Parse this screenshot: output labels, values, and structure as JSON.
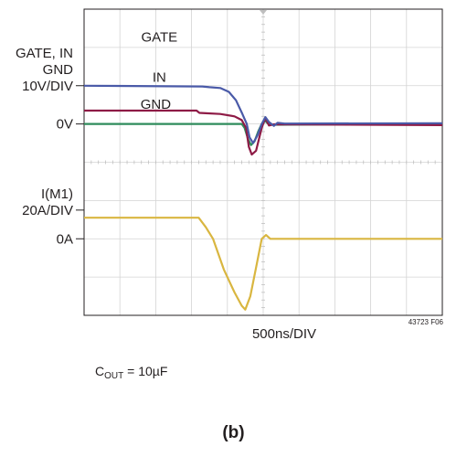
{
  "chart_data": {
    "type": "line",
    "title": "",
    "xlabel": "500ns/DIV",
    "figure_id": "43723 F06",
    "grid": true,
    "divisions": {
      "x": 10,
      "y": 8
    },
    "time_per_div_ns": 500,
    "xlim_ns": [
      0,
      5000
    ],
    "y_axis_labels": [
      {
        "lines": [
          "GATE, IN",
          "GND",
          "10V/DIV"
        ],
        "div": 6.0
      },
      {
        "lines": [
          "0V"
        ],
        "div": 5.0
      },
      {
        "lines": [
          "I(M1)",
          "20A/DIV"
        ],
        "div": 2.75
      },
      {
        "lines": [
          "0A"
        ],
        "div": 2.0
      }
    ],
    "series": [
      {
        "name": "GATE",
        "color": "#4a5aa8",
        "ref_div": 5.0,
        "units_per_div": 10,
        "unit": "V",
        "points": [
          [
            0,
            10
          ],
          [
            1650,
            9.8
          ],
          [
            1750,
            9.6
          ],
          [
            1900,
            9.4
          ],
          [
            2020,
            8.4
          ],
          [
            2120,
            6.2
          ],
          [
            2200,
            3.0
          ],
          [
            2270,
            0
          ],
          [
            2310,
            -3.5
          ],
          [
            2360,
            -5.0
          ],
          [
            2420,
            -3.0
          ],
          [
            2480,
            0
          ],
          [
            2530,
            1.8
          ],
          [
            2580,
            0.5
          ],
          [
            2650,
            -0.5
          ],
          [
            2700,
            0.3
          ],
          [
            2800,
            0.1
          ],
          [
            5000,
            0.2
          ]
        ]
      },
      {
        "name": "IN",
        "color": "#8e1b46",
        "ref_div": 5.0,
        "units_per_div": 10,
        "unit": "V",
        "points": [
          [
            0,
            3.5
          ],
          [
            1570,
            3.5
          ],
          [
            1610,
            2.9
          ],
          [
            1700,
            2.8
          ],
          [
            1900,
            2.6
          ],
          [
            2100,
            2.0
          ],
          [
            2200,
            1.0
          ],
          [
            2260,
            -1.0
          ],
          [
            2300,
            -6.0
          ],
          [
            2340,
            -8.0
          ],
          [
            2400,
            -7.0
          ],
          [
            2440,
            -4.0
          ],
          [
            2480,
            -1.0
          ],
          [
            2530,
            1.6
          ],
          [
            2580,
            -0.4
          ],
          [
            2650,
            -0.1
          ],
          [
            5000,
            -0.3
          ]
        ]
      },
      {
        "name": "GND",
        "color": "#2f8c5c",
        "ref_div": 5.0,
        "units_per_div": 10,
        "unit": "V",
        "points": [
          [
            0,
            0
          ],
          [
            2200,
            0
          ],
          [
            2240,
            -1.0
          ],
          [
            2290,
            -4.0
          ],
          [
            2330,
            -5.5
          ],
          [
            2380,
            -4.5
          ],
          [
            2430,
            -2.0
          ],
          [
            2480,
            0
          ],
          [
            2530,
            0.8
          ],
          [
            2580,
            -0.2
          ],
          [
            5000,
            0
          ]
        ]
      },
      {
        "name": "I(M1)",
        "color": "#d9b640",
        "ref_div": 2.0,
        "units_per_div": 20,
        "unit": "A",
        "points": [
          [
            0,
            11
          ],
          [
            1600,
            11
          ],
          [
            1700,
            6
          ],
          [
            1800,
            0
          ],
          [
            1950,
            -16
          ],
          [
            2100,
            -28
          ],
          [
            2200,
            -35
          ],
          [
            2250,
            -37
          ],
          [
            2320,
            -30
          ],
          [
            2400,
            -15
          ],
          [
            2480,
            0
          ],
          [
            2540,
            2
          ],
          [
            2600,
            0
          ],
          [
            5000,
            0
          ]
        ]
      }
    ],
    "trace_labels": [
      {
        "text": "GATE",
        "x_ns": 1050,
        "y_div": 7.15
      },
      {
        "text": "IN",
        "x_ns": 1050,
        "y_div": 6.1
      },
      {
        "text": "GND",
        "x_ns": 1000,
        "y_div": 5.4
      }
    ],
    "caption": {
      "main": "C",
      "sub": "OUT",
      "rest": " = 10µF"
    },
    "panel_label": "(b)"
  }
}
